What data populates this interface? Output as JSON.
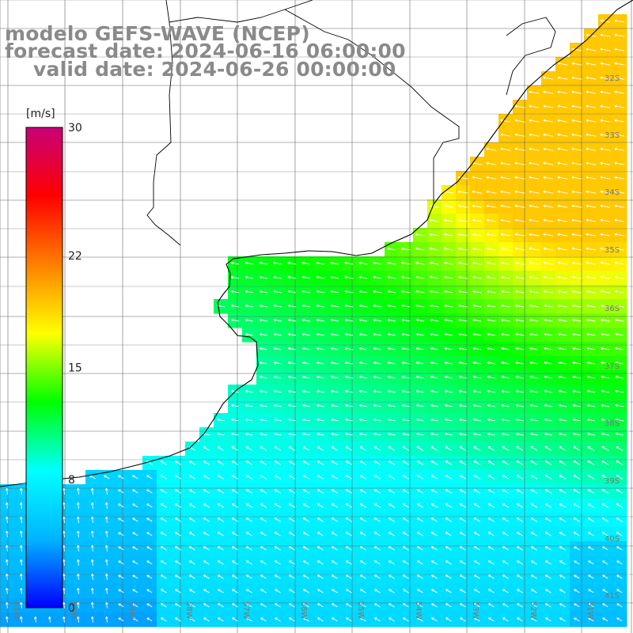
{
  "title": {
    "model": "modelo GEFS-WAVE (NCEP)",
    "forecast": "forecast date: 2024-06-16 06:00:00",
    "valid": "valid date: 2024-06-26 00:00:00"
  },
  "colorbar": {
    "unit": "[m/s]",
    "ticks": [
      {
        "value": 30,
        "label": "30"
      },
      {
        "value": 22,
        "label": "22"
      },
      {
        "value": 15,
        "label": "15"
      },
      {
        "value": 8,
        "label": "8"
      },
      {
        "value": 0,
        "label": "0"
      }
    ],
    "min": 0,
    "max": 30,
    "colors": [
      "#0000ff",
      "#00b4ff",
      "#00ffff",
      "#00ff00",
      "#ffff00",
      "#ff8000",
      "#ff0000",
      "#c80078"
    ]
  },
  "map": {
    "lon_range": [
      -61.5,
      -50
    ],
    "lat_range": [
      -41.5,
      -30.5
    ],
    "lat_labels": [
      "32S",
      "33S",
      "34S",
      "35S",
      "36S",
      "37S",
      "38S",
      "39S",
      "40S",
      "41S"
    ],
    "lon_labels": [
      "61W",
      "60W",
      "59W",
      "58W",
      "57W",
      "56W",
      "55W",
      "54W",
      "53W",
      "52W",
      "51W"
    ],
    "grid_lines": true,
    "wind_direction": "from east (arrows pointing west / south-west)"
  }
}
